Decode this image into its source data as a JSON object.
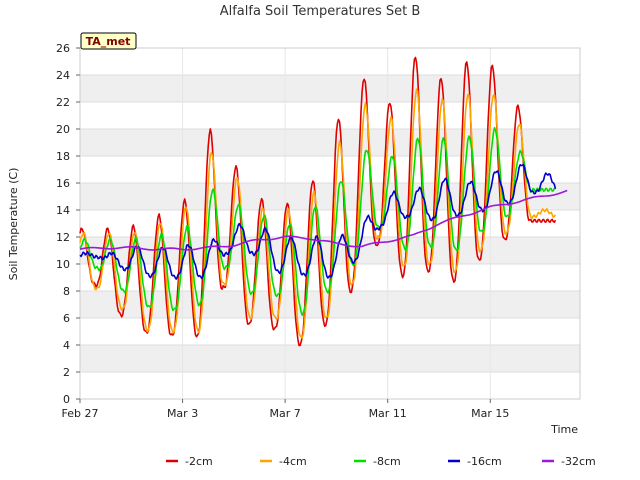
{
  "chart_data": {
    "type": "line",
    "title": "Alfalfa Soil Temperatures Set B",
    "xlabel": "Time",
    "ylabel": "Soil Temperature (C)",
    "annotation": "TA_met",
    "xlim": [
      0,
      19.5
    ],
    "ylim": [
      0,
      26
    ],
    "yticks": [
      0,
      2,
      4,
      6,
      8,
      10,
      12,
      14,
      16,
      18,
      20,
      22,
      24,
      26
    ],
    "xticks": [
      {
        "x": 0,
        "label": "Feb 27"
      },
      {
        "x": 4,
        "label": "Mar 3"
      },
      {
        "x": 8,
        "label": "Mar 7"
      },
      {
        "x": 12,
        "label": "Mar 11"
      },
      {
        "x": 16,
        "label": "Mar 15"
      }
    ],
    "grid": true,
    "legend_position": "bottom",
    "series": [
      {
        "name": "-2cm",
        "color": "#e00000",
        "min": [
          8.5,
          6.2,
          4.9,
          4.7,
          4.6,
          8.3,
          5.5,
          5.2,
          4.0,
          5.5,
          8.0,
          11.5,
          9.1,
          9.5,
          8.7,
          10.3,
          11.8,
          13.2
        ],
        "max": [
          12.6,
          12.8,
          13.6,
          14.7,
          19.9,
          17.2,
          14.8,
          14.5,
          16.2,
          20.8,
          23.8,
          22.0,
          25.4,
          23.8,
          25.0,
          24.7,
          21.7,
          13.2
        ]
      },
      {
        "name": "-4cm",
        "color": "#ffa500",
        "min": [
          8.2,
          6.7,
          5.1,
          5.0,
          5.0,
          8.6,
          6.0,
          6.0,
          4.5,
          6.0,
          8.5,
          12.0,
          9.8,
          10.0,
          9.4,
          11.0,
          12.3,
          13.5
        ],
        "max": [
          12.3,
          12.4,
          13.1,
          14.3,
          18.3,
          16.4,
          14.1,
          14.0,
          15.3,
          19.0,
          21.8,
          20.8,
          22.9,
          22.2,
          22.6,
          22.6,
          20.4,
          14.0
        ]
      },
      {
        "name": "-8cm",
        "color": "#00e000",
        "min": [
          9.7,
          8.0,
          6.8,
          6.6,
          7.0,
          9.8,
          7.8,
          7.7,
          6.3,
          8.0,
          10.0,
          12.8,
          11.1,
          11.3,
          11.0,
          12.4,
          13.5,
          15.5
        ],
        "max": [
          11.8,
          11.9,
          12.2,
          12.8,
          15.5,
          14.4,
          13.6,
          13.0,
          14.3,
          16.2,
          18.5,
          18.0,
          19.3,
          19.3,
          19.4,
          20.0,
          18.3,
          15.5
        ]
      },
      {
        "name": "-16cm",
        "color": "#0000cc",
        "min": [
          10.5,
          9.6,
          9.1,
          9.0,
          9.0,
          10.8,
          10.8,
          9.4,
          9.2,
          9.0,
          10.2,
          12.8,
          13.5,
          13.3,
          13.6,
          14.0,
          14.5,
          15.3
        ],
        "max": [
          10.8,
          11.3,
          11.2,
          11.4,
          11.8,
          12.9,
          12.6,
          12.0,
          12.0,
          12.1,
          13.5,
          15.3,
          15.6,
          16.3,
          16.1,
          16.9,
          17.4,
          16.7
        ]
      },
      {
        "name": "-32cm",
        "color": "#9a1ad6",
        "x": [
          0,
          1,
          2,
          3,
          4,
          5,
          6,
          7,
          8,
          9,
          10,
          11,
          12,
          13,
          14,
          15,
          16,
          17,
          18,
          19
        ],
        "values": [
          11.1,
          11.2,
          11.2,
          11.1,
          11.1,
          11.2,
          11.4,
          11.8,
          12.0,
          11.9,
          11.5,
          11.3,
          11.7,
          12.1,
          13.0,
          13.6,
          14.2,
          14.6,
          15.0,
          15.4
        ]
      }
    ]
  }
}
